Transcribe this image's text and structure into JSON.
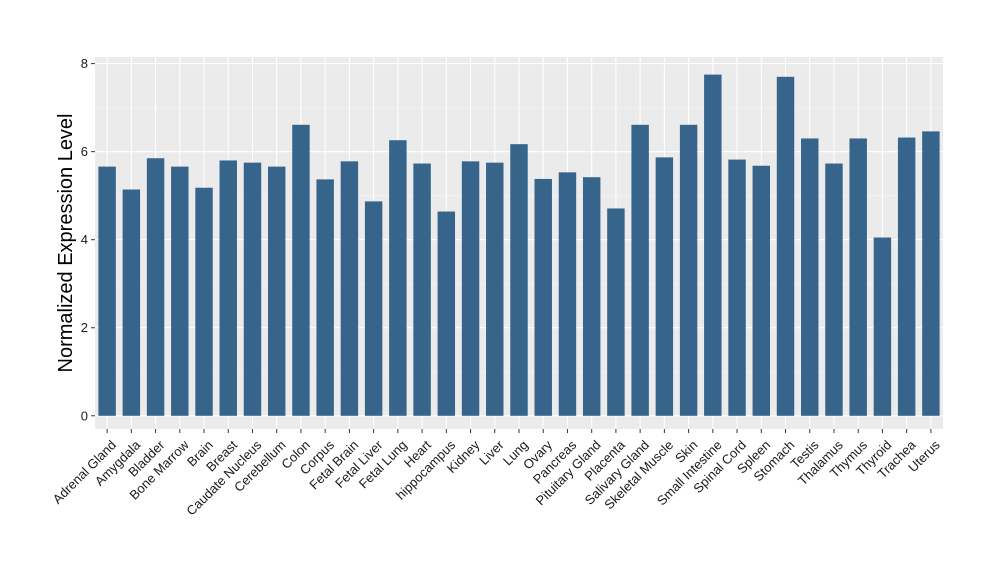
{
  "chart_data": {
    "type": "bar",
    "ylabel": "Normalized Expression Level",
    "xlabel": "",
    "ylim": [
      -0.3,
      8.15
    ],
    "yticks": [
      0,
      2,
      4,
      6,
      8
    ],
    "grid": true,
    "colors": {
      "bar": "#36648B",
      "panel": "#EBEBEB",
      "grid_major": "#FFFFFF",
      "grid_minor": "#F5F5F5"
    },
    "categories": [
      "Adrenal Gland",
      "Amygdala",
      "Bladder",
      "Bone Marrow",
      "Brain",
      "Breast",
      "Caudate Nucleus",
      "Cerebellum",
      "Colon",
      "Corpus",
      "Fetal Brain",
      "Fetal Liver",
      "Fetal Lung",
      "Heart",
      "hippocampus",
      "Kidney",
      "Liver",
      "Lung",
      "Ovary",
      "Pancreas",
      "Pituitary Gland",
      "Placenta",
      "Salivary Gland",
      "Skeletal Muscle",
      "Skin",
      "Small Intestine",
      "Spinal Cord",
      "Spleen",
      "Stomach",
      "Testis",
      "Thalamus",
      "Thymus",
      "Thyroid",
      "Trachea",
      "Uterus"
    ],
    "values": [
      5.66,
      5.14,
      5.85,
      5.66,
      5.18,
      5.8,
      5.75,
      5.66,
      6.61,
      5.37,
      5.78,
      4.87,
      6.26,
      5.73,
      4.64,
      5.78,
      5.75,
      6.17,
      5.38,
      5.53,
      5.42,
      4.71,
      6.61,
      5.87,
      6.61,
      7.75,
      5.82,
      5.68,
      7.7,
      6.3,
      5.73,
      6.3,
      4.05,
      6.32,
      6.46
    ]
  }
}
